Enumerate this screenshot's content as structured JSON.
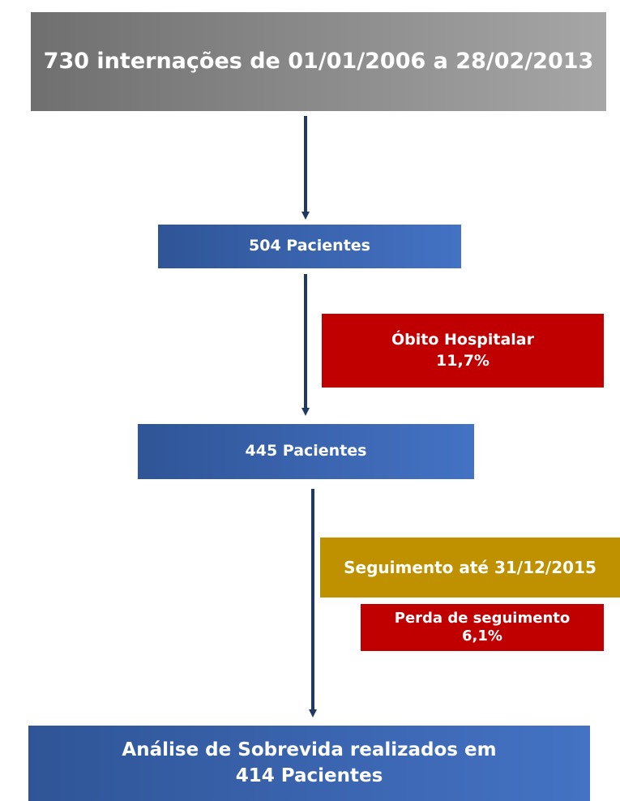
{
  "nodes": [
    {
      "lines": [
        "730 internações de 01/01/2006 a 28/02/2013"
      ]
    },
    {
      "lines": [
        "504 Pacientes"
      ]
    },
    {
      "lines": [
        "Óbito Hospitalar",
        "11,7%"
      ]
    },
    {
      "lines": [
        "445 Pacientes"
      ]
    },
    {
      "lines": [
        "Seguimento até 31/12/2015"
      ]
    },
    {
      "lines": [
        "Perda de seguimento",
        "6,1%"
      ]
    },
    {
      "lines": [
        "Análise de Sobrevida realizados em",
        "414 Pacientes"
      ]
    }
  ]
}
